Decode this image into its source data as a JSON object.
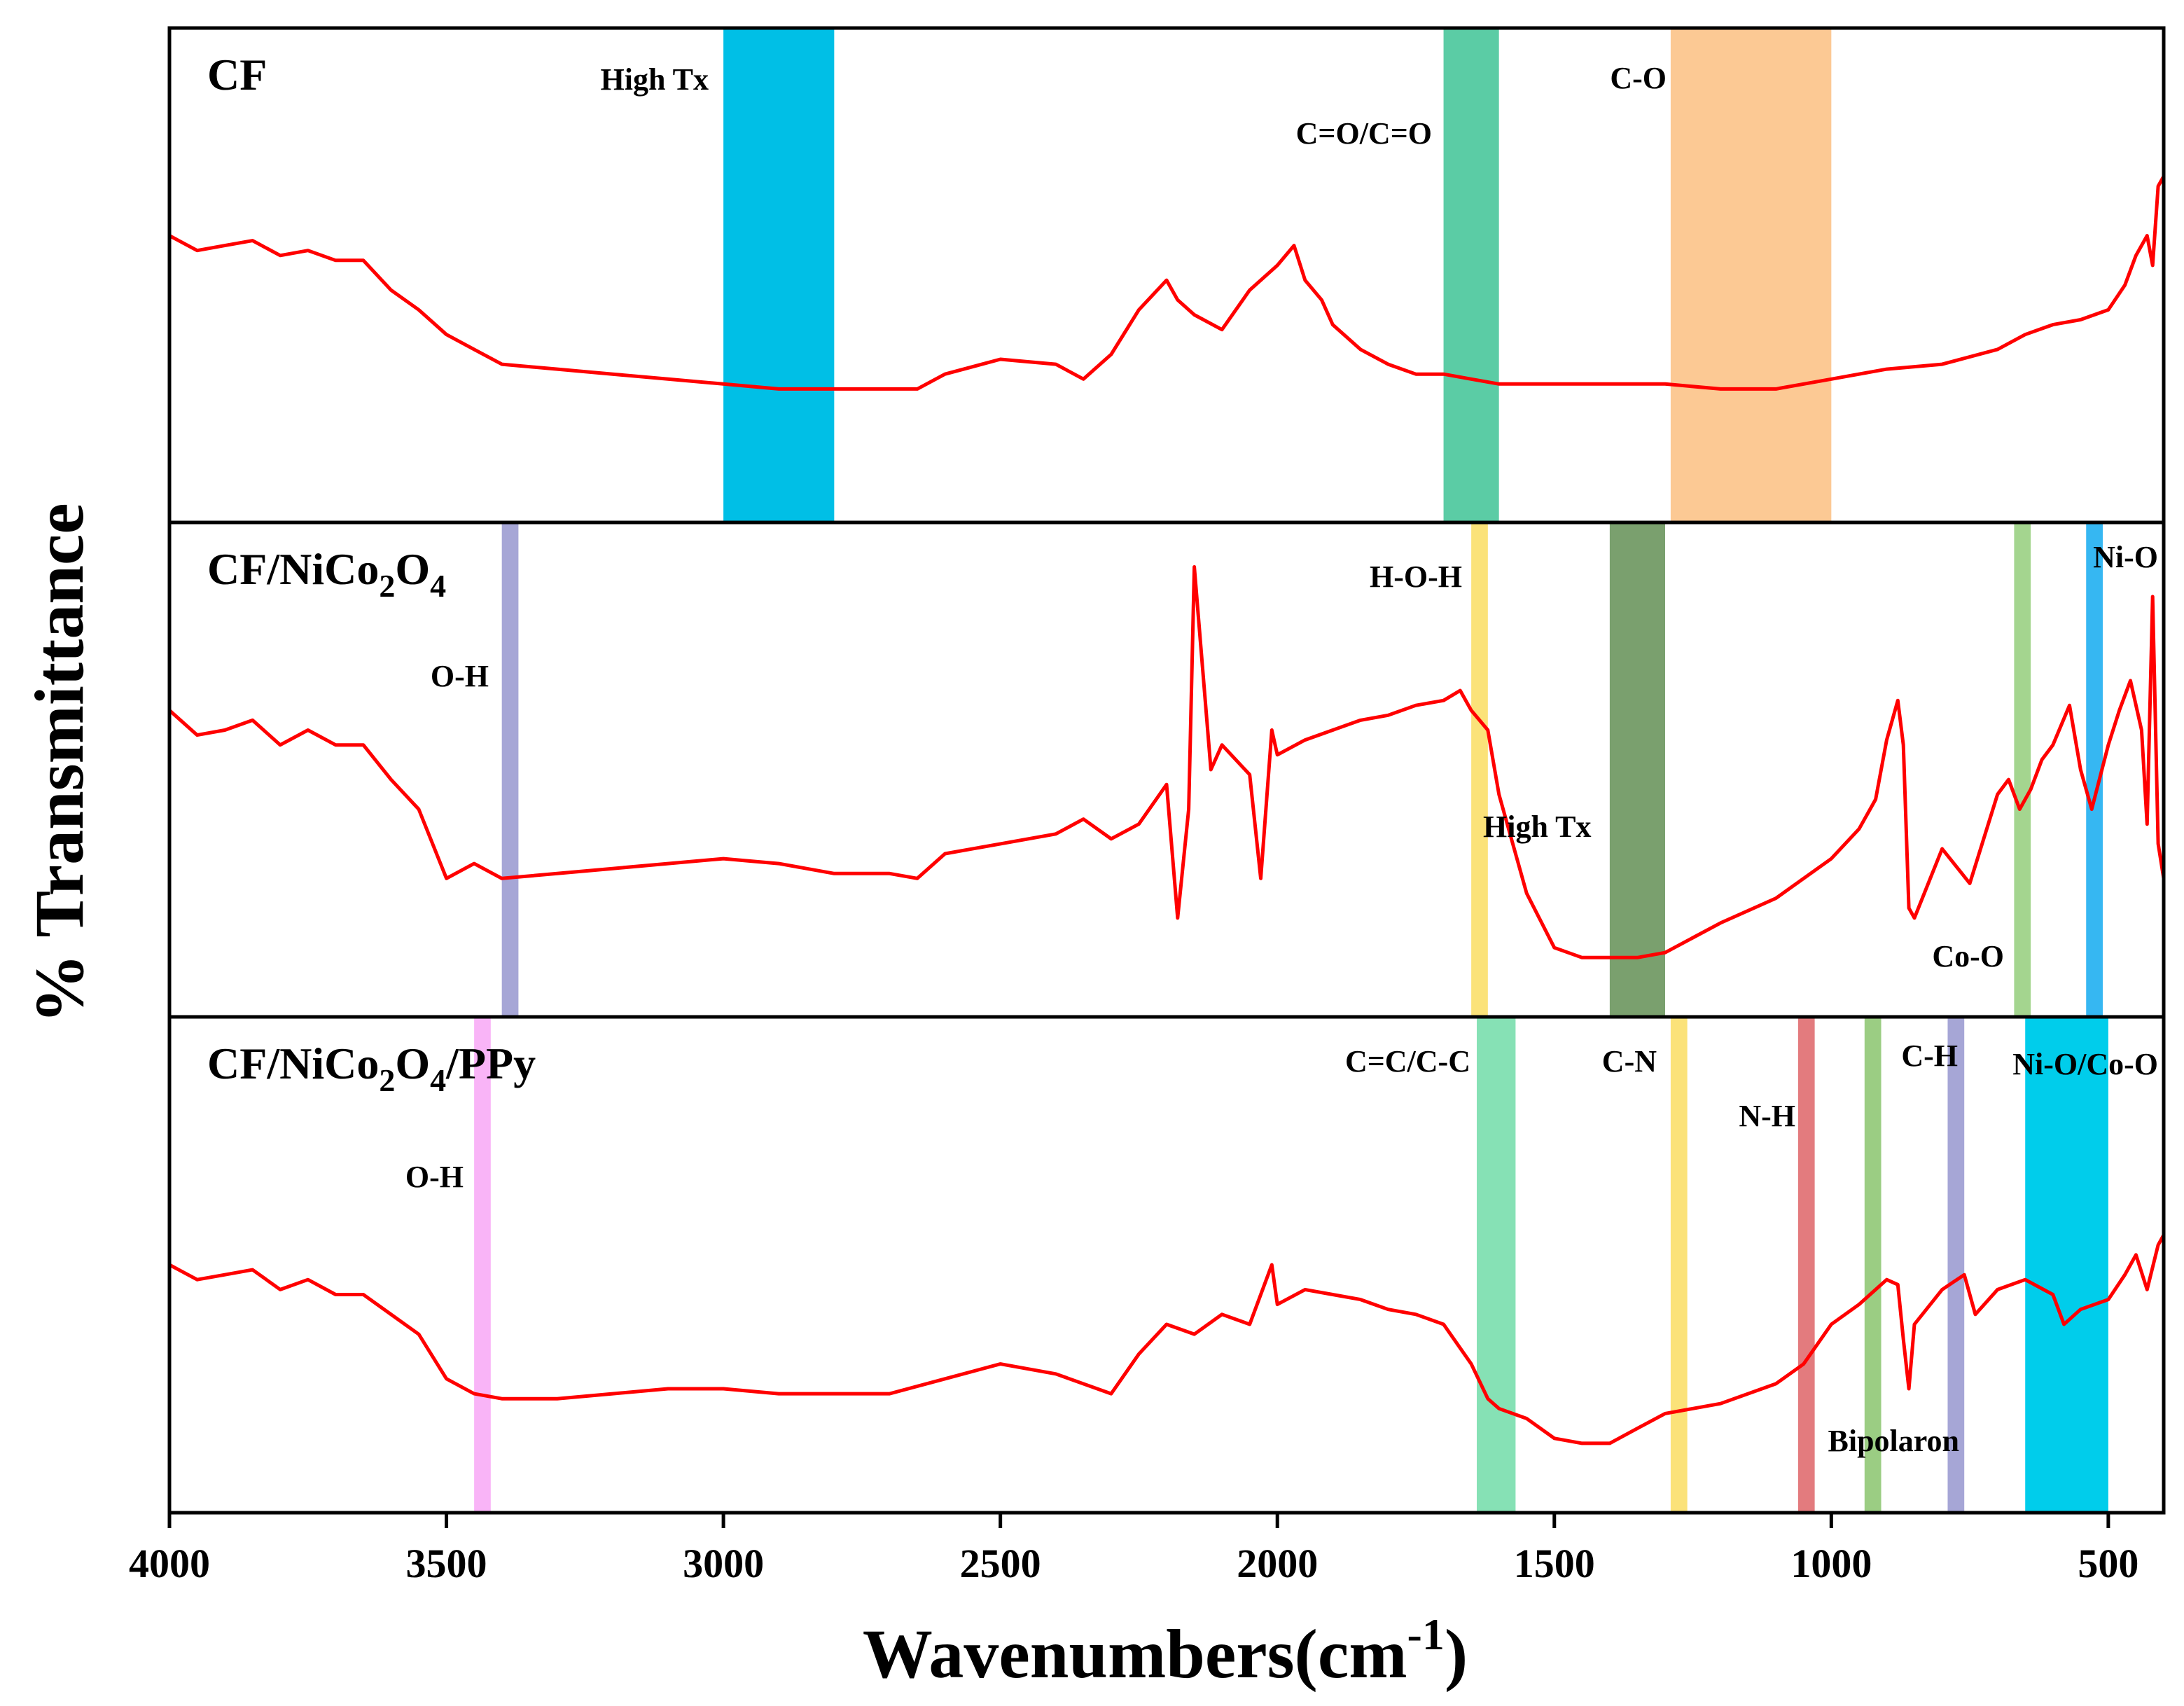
{
  "chart_data": {
    "type": "line",
    "title": "",
    "xlabel": "Wavenumbers(cm",
    "xlabel_superscript": "-1",
    "xlabel_close": ")",
    "ylabel": "% Transmittance",
    "xlim": [
      4000,
      400
    ],
    "x_reversed": true,
    "x_ticks": [
      4000,
      3500,
      3000,
      2500,
      2000,
      1500,
      1000,
      500
    ],
    "x_tick_labels": [
      "4000",
      "3500",
      "3000",
      "2500",
      "2000",
      "1500",
      "1000",
      "500"
    ],
    "y_ticks": [],
    "grid": false,
    "legend": "none",
    "line_color": "#ff0000",
    "panels": [
      {
        "name": "CF",
        "title_parts": [
          {
            "t": "CF"
          }
        ],
        "bands": [
          {
            "label": "High Tx",
            "from": 3000,
            "to": 2800,
            "color": "#00bfe6"
          },
          {
            "label": "C=O/C=O",
            "from": 1700,
            "to": 1600,
            "color": "#5bcca5"
          },
          {
            "label": "C-O",
            "from": 1290,
            "to": 1000,
            "color": "#fcc994"
          }
        ],
        "series": {
          "name": "CF",
          "x": [
            4000,
            3950,
            3900,
            3850,
            3800,
            3750,
            3700,
            3650,
            3600,
            3550,
            3500,
            3450,
            3400,
            3300,
            3200,
            3100,
            3000,
            2900,
            2800,
            2700,
            2650,
            2600,
            2500,
            2400,
            2350,
            2300,
            2250,
            2200,
            2180,
            2150,
            2100,
            2050,
            2000,
            1970,
            1950,
            1920,
            1900,
            1850,
            1800,
            1750,
            1700,
            1650,
            1600,
            1500,
            1400,
            1300,
            1200,
            1100,
            1000,
            900,
            800,
            700,
            650,
            600,
            550,
            500,
            470,
            450,
            430,
            420,
            410,
            400
          ],
          "y": [
            0.58,
            0.55,
            0.56,
            0.57,
            0.54,
            0.55,
            0.53,
            0.53,
            0.47,
            0.43,
            0.38,
            0.35,
            0.32,
            0.31,
            0.3,
            0.29,
            0.28,
            0.27,
            0.27,
            0.27,
            0.27,
            0.3,
            0.33,
            0.32,
            0.29,
            0.34,
            0.43,
            0.49,
            0.45,
            0.42,
            0.39,
            0.47,
            0.52,
            0.56,
            0.49,
            0.45,
            0.4,
            0.35,
            0.32,
            0.3,
            0.3,
            0.29,
            0.28,
            0.28,
            0.28,
            0.28,
            0.27,
            0.27,
            0.29,
            0.31,
            0.32,
            0.35,
            0.38,
            0.4,
            0.41,
            0.43,
            0.48,
            0.54,
            0.58,
            0.52,
            0.68,
            0.7
          ]
        }
      },
      {
        "name": "CF/NiCo2O4",
        "title_parts": [
          {
            "t": "CF/NiCo"
          },
          {
            "t": "2",
            "sub": true
          },
          {
            "t": "O"
          },
          {
            "t": "4",
            "sub": true
          }
        ],
        "bands": [
          {
            "label": "O-H",
            "from": 3400,
            "to": 3370,
            "color": "#a6a6d6"
          },
          {
            "label": "H-O-H",
            "from": 1650,
            "to": 1620,
            "color": "#fbe279"
          },
          {
            "label": "High Tx",
            "from": 1400,
            "to": 1300,
            "color": "#7aa06e"
          },
          {
            "label": "Co-O",
            "from": 670,
            "to": 640,
            "color": "#a4d58f"
          },
          {
            "label": "Ni-O",
            "from": 540,
            "to": 510,
            "color": "#36b7f2"
          }
        ],
        "series": {
          "name": "CF/NiCo2O4",
          "x": [
            4000,
            3950,
            3900,
            3850,
            3800,
            3750,
            3700,
            3650,
            3600,
            3550,
            3500,
            3450,
            3400,
            3300,
            3200,
            3100,
            3000,
            2900,
            2800,
            2700,
            2650,
            2600,
            2500,
            2400,
            2350,
            2300,
            2250,
            2200,
            2180,
            2160,
            2150,
            2120,
            2100,
            2050,
            2030,
            2010,
            2000,
            1950,
            1900,
            1850,
            1800,
            1750,
            1700,
            1670,
            1650,
            1620,
            1600,
            1550,
            1500,
            1450,
            1400,
            1350,
            1300,
            1250,
            1200,
            1100,
            1000,
            950,
            920,
            900,
            880,
            870,
            860,
            850,
            800,
            750,
            700,
            680,
            660,
            640,
            620,
            600,
            570,
            550,
            530,
            500,
            480,
            460,
            440,
            430,
            420,
            410,
            400
          ],
          "y": [
            0.62,
            0.57,
            0.58,
            0.6,
            0.55,
            0.58,
            0.55,
            0.55,
            0.48,
            0.42,
            0.28,
            0.31,
            0.28,
            0.29,
            0.3,
            0.31,
            0.32,
            0.31,
            0.29,
            0.29,
            0.28,
            0.33,
            0.35,
            0.37,
            0.4,
            0.36,
            0.39,
            0.47,
            0.2,
            0.42,
            0.91,
            0.5,
            0.55,
            0.49,
            0.28,
            0.58,
            0.53,
            0.56,
            0.58,
            0.6,
            0.61,
            0.63,
            0.64,
            0.66,
            0.62,
            0.58,
            0.45,
            0.25,
            0.14,
            0.12,
            0.12,
            0.12,
            0.13,
            0.16,
            0.19,
            0.24,
            0.32,
            0.38,
            0.44,
            0.56,
            0.64,
            0.55,
            0.22,
            0.2,
            0.34,
            0.27,
            0.45,
            0.48,
            0.42,
            0.46,
            0.52,
            0.55,
            0.63,
            0.5,
            0.42,
            0.55,
            0.62,
            0.68,
            0.58,
            0.39,
            0.85,
            0.35,
            0.28
          ]
        }
      },
      {
        "name": "CF/NiCo2O4/PPy",
        "title_parts": [
          {
            "t": "CF/NiCo"
          },
          {
            "t": "2",
            "sub": true
          },
          {
            "t": "O"
          },
          {
            "t": "4",
            "sub": true
          },
          {
            "t": "/PPy"
          }
        ],
        "bands": [
          {
            "label": "O-H",
            "from": 3450,
            "to": 3420,
            "color": "#f9b4f7"
          },
          {
            "label": "C=C/C-C",
            "from": 1640,
            "to": 1570,
            "color": "#86e1b5"
          },
          {
            "label": "C-N",
            "from": 1290,
            "to": 1260,
            "color": "#fbe279"
          },
          {
            "label": "N-H",
            "from": 1060,
            "to": 1030,
            "color": "#e37b7e"
          },
          {
            "label": "Bipolaron",
            "from": 940,
            "to": 910,
            "color": "#9bcd83"
          },
          {
            "label": "C-H",
            "from": 790,
            "to": 760,
            "color": "#a6a6d6"
          },
          {
            "label": "Ni-O/Co-O",
            "from": 650,
            "to": 500,
            "color": "#00cdeb"
          }
        ],
        "series": {
          "name": "CF/NiCo2O4/PPy",
          "x": [
            4000,
            3950,
            3900,
            3850,
            3800,
            3750,
            3700,
            3650,
            3600,
            3550,
            3500,
            3450,
            3400,
            3300,
            3200,
            3100,
            3000,
            2900,
            2800,
            2700,
            2600,
            2500,
            2400,
            2300,
            2250,
            2200,
            2150,
            2100,
            2050,
            2010,
            2000,
            1950,
            1900,
            1850,
            1800,
            1750,
            1700,
            1650,
            1620,
            1600,
            1550,
            1500,
            1450,
            1400,
            1350,
            1300,
            1250,
            1200,
            1100,
            1050,
            1000,
            950,
            920,
            900,
            880,
            870,
            860,
            850,
            800,
            760,
            740,
            700,
            650,
            600,
            580,
            550,
            500,
            470,
            450,
            430,
            410,
            400
          ],
          "y": [
            0.5,
            0.47,
            0.48,
            0.49,
            0.45,
            0.47,
            0.44,
            0.44,
            0.4,
            0.36,
            0.27,
            0.24,
            0.23,
            0.23,
            0.24,
            0.25,
            0.25,
            0.24,
            0.24,
            0.24,
            0.27,
            0.3,
            0.28,
            0.24,
            0.32,
            0.38,
            0.36,
            0.4,
            0.38,
            0.5,
            0.42,
            0.45,
            0.44,
            0.43,
            0.41,
            0.4,
            0.38,
            0.3,
            0.23,
            0.21,
            0.19,
            0.15,
            0.14,
            0.14,
            0.17,
            0.2,
            0.21,
            0.22,
            0.26,
            0.3,
            0.38,
            0.42,
            0.45,
            0.47,
            0.46,
            0.35,
            0.25,
            0.38,
            0.45,
            0.48,
            0.4,
            0.45,
            0.47,
            0.44,
            0.38,
            0.41,
            0.43,
            0.48,
            0.52,
            0.45,
            0.54,
            0.56
          ]
        }
      }
    ]
  }
}
